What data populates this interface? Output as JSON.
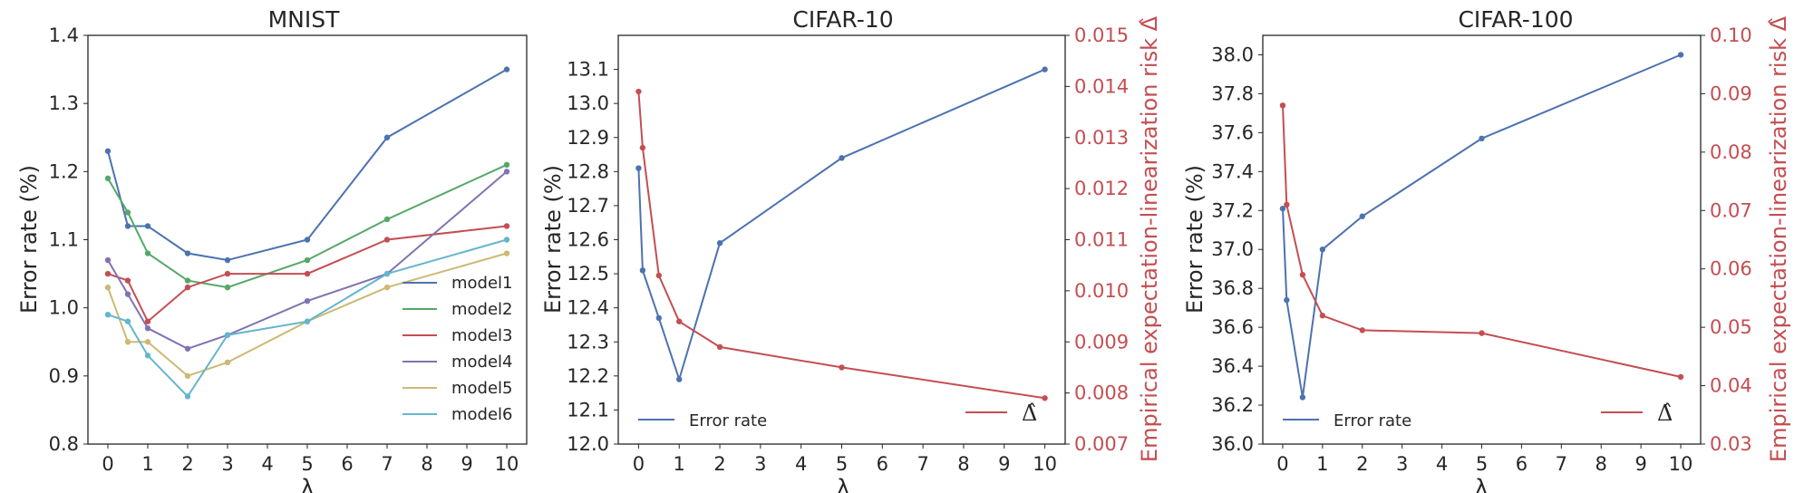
{
  "chart_data": [
    {
      "type": "line",
      "title": "MNIST",
      "xlabel": "λ",
      "ylabel": "Error rate (%)",
      "xlim": [
        -0.5,
        10.5
      ],
      "ylim": [
        0.8,
        1.4
      ],
      "xticks": [
        0,
        1,
        2,
        3,
        4,
        5,
        6,
        7,
        8,
        9,
        10
      ],
      "yticks": [
        0.8,
        0.9,
        1.0,
        1.1,
        1.2,
        1.3,
        1.4
      ],
      "ytick_labels": [
        "0.8",
        "0.9",
        "1.0",
        "1.1",
        "1.2",
        "1.3",
        "1.4"
      ],
      "legend_position": "lower-right",
      "series": [
        {
          "name": "model1",
          "color": "#4c72b0",
          "x": [
            0,
            0.5,
            1,
            2,
            3,
            5,
            7,
            10
          ],
          "y": [
            1.23,
            1.12,
            1.12,
            1.08,
            1.07,
            1.1,
            1.25,
            1.35
          ]
        },
        {
          "name": "model2",
          "color": "#55a868",
          "x": [
            0,
            0.5,
            1,
            2,
            3,
            5,
            7,
            10
          ],
          "y": [
            1.19,
            1.14,
            1.08,
            1.04,
            1.03,
            1.07,
            1.13,
            1.21
          ]
        },
        {
          "name": "model3",
          "color": "#c44e52",
          "x": [
            0,
            0.5,
            1,
            2,
            3,
            5,
            7,
            10
          ],
          "y": [
            1.05,
            1.04,
            0.98,
            1.03,
            1.05,
            1.05,
            1.1,
            1.12
          ]
        },
        {
          "name": "model4",
          "color": "#8172b2",
          "x": [
            0,
            0.5,
            1,
            2,
            3,
            5,
            7,
            10
          ],
          "y": [
            1.07,
            1.02,
            0.97,
            0.94,
            0.96,
            1.01,
            1.05,
            1.2
          ]
        },
        {
          "name": "model5",
          "color": "#ccb974",
          "x": [
            0,
            0.5,
            1,
            2,
            3,
            5,
            7,
            10
          ],
          "y": [
            1.03,
            0.95,
            0.95,
            0.9,
            0.92,
            0.98,
            1.03,
            1.08
          ]
        },
        {
          "name": "model6",
          "color": "#64b5cd",
          "x": [
            0,
            0.5,
            1,
            2,
            3,
            5,
            7,
            10
          ],
          "y": [
            0.99,
            0.98,
            0.93,
            0.87,
            0.96,
            0.98,
            1.05,
            1.1
          ]
        }
      ]
    },
    {
      "type": "line",
      "title": "CIFAR-10",
      "xlabel": "λ",
      "ylabel": "Error rate (%)",
      "y2label": "Empirical expectation-linearization risk Δ̂",
      "xlim": [
        -0.5,
        10.5
      ],
      "ylim": [
        12.0,
        13.2
      ],
      "y2lim": [
        0.007,
        0.015
      ],
      "xticks": [
        0,
        1,
        2,
        3,
        4,
        5,
        6,
        7,
        8,
        9,
        10
      ],
      "yticks": [
        12.0,
        12.1,
        12.2,
        12.3,
        12.4,
        12.5,
        12.6,
        12.7,
        12.8,
        12.9,
        13.0,
        13.1
      ],
      "ytick_labels": [
        "12.0",
        "12.1",
        "12.2",
        "12.3",
        "12.4",
        "12.5",
        "12.6",
        "12.7",
        "12.8",
        "12.9",
        "13.0",
        "13.1"
      ],
      "y2ticks": [
        0.007,
        0.008,
        0.009,
        0.01,
        0.011,
        0.012,
        0.013,
        0.014,
        0.015
      ],
      "y2tick_labels": [
        "0.007",
        "0.008",
        "0.009",
        "0.010",
        "0.011",
        "0.012",
        "0.013",
        "0.014",
        "0.015"
      ],
      "series": [
        {
          "name": "Error rate",
          "axis": "left",
          "color": "#4c72b0",
          "legend_position": "lower-left",
          "x": [
            0,
            0.1,
            0.5,
            1,
            2,
            5,
            10
          ],
          "y": [
            12.81,
            12.51,
            12.37,
            12.19,
            12.59,
            12.84,
            13.1
          ]
        },
        {
          "name": "Δ̂",
          "axis": "right",
          "color": "#c44e52",
          "legend_position": "lower-right",
          "x": [
            0,
            0.1,
            0.5,
            1,
            2,
            5,
            10
          ],
          "y": [
            0.0139,
            0.0128,
            0.0103,
            0.0094,
            0.0089,
            0.0085,
            0.0079
          ]
        }
      ]
    },
    {
      "type": "line",
      "title": "CIFAR-100",
      "xlabel": "λ",
      "ylabel": "Error rate (%)",
      "y2label": "Empirical expectation-linearization risk Δ̂",
      "xlim": [
        -0.5,
        10.5
      ],
      "ylim": [
        36.0,
        38.1
      ],
      "y2lim": [
        0.03,
        0.1
      ],
      "xticks": [
        0,
        1,
        2,
        3,
        4,
        5,
        6,
        7,
        8,
        9,
        10
      ],
      "yticks": [
        36.0,
        36.2,
        36.4,
        36.6,
        36.8,
        37.0,
        37.2,
        37.4,
        37.6,
        37.8,
        38.0
      ],
      "ytick_labels": [
        "36.0",
        "36.2",
        "36.4",
        "36.6",
        "36.8",
        "37.0",
        "37.2",
        "37.4",
        "37.6",
        "37.8",
        "38.0"
      ],
      "y2ticks": [
        0.03,
        0.04,
        0.05,
        0.06,
        0.07,
        0.08,
        0.09,
        0.1
      ],
      "y2tick_labels": [
        "0.03",
        "0.04",
        "0.05",
        "0.06",
        "0.07",
        "0.08",
        "0.09",
        "0.10"
      ],
      "series": [
        {
          "name": "Error rate",
          "axis": "left",
          "color": "#4c72b0",
          "legend_position": "lower-left",
          "x": [
            0,
            0.1,
            0.5,
            1,
            2,
            5,
            10
          ],
          "y": [
            37.21,
            36.74,
            36.24,
            37.0,
            37.17,
            37.57,
            38.0
          ]
        },
        {
          "name": "Δ̂",
          "axis": "right",
          "color": "#c44e52",
          "legend_position": "lower-right",
          "x": [
            0,
            0.1,
            0.5,
            1,
            2,
            5,
            10
          ],
          "y": [
            0.088,
            0.071,
            0.059,
            0.052,
            0.0495,
            0.049,
            0.0415
          ]
        }
      ]
    }
  ]
}
